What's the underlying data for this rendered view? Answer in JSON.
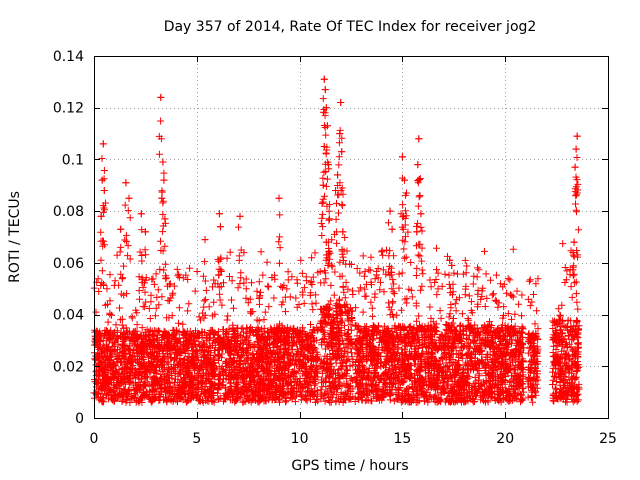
{
  "chart_data": {
    "type": "scatter",
    "title": "Day 357 of 2014, Rate Of TEC Index for receiver jog2",
    "xlabel": "GPS time / hours",
    "ylabel": "ROTI / TECUs",
    "xlim": [
      0,
      25
    ],
    "ylim": [
      0,
      0.14
    ],
    "xticks": [
      0,
      5,
      10,
      15,
      20,
      25
    ],
    "xtick_labels": [
      "0",
      "5",
      "10",
      "15",
      "20",
      "25"
    ],
    "yticks": [
      0,
      0.02,
      0.04,
      0.06,
      0.08,
      0.1,
      0.12,
      0.14
    ],
    "ytick_labels": [
      "0",
      "0.02",
      "0.04",
      "0.06",
      "0.08",
      "0.1",
      "0.12",
      "0.14"
    ],
    "grid": true,
    "marker": "+",
    "color": "#ff0000",
    "series": [
      {
        "name": "ROTI",
        "segments": [
          {
            "x_start": 0.0,
            "x_end": 5.9,
            "base": 0.022,
            "spread": 0.012
          },
          {
            "x_start": 6.0,
            "x_end": 10.9,
            "base": 0.023,
            "spread": 0.012
          },
          {
            "x_start": 11.0,
            "x_end": 12.6,
            "base": 0.028,
            "spread": 0.016
          },
          {
            "x_start": 12.7,
            "x_end": 20.9,
            "base": 0.024,
            "spread": 0.012
          },
          {
            "x_start": 21.1,
            "x_end": 21.6,
            "base": 0.022,
            "spread": 0.011
          },
          {
            "x_start": 22.3,
            "x_end": 23.6,
            "base": 0.025,
            "spread": 0.013
          }
        ],
        "spikes": [
          {
            "x": 0.45,
            "y": 0.106
          },
          {
            "x": 0.4,
            "y": 0.092
          },
          {
            "x": 0.5,
            "y": 0.088
          },
          {
            "x": 0.35,
            "y": 0.078
          },
          {
            "x": 1.3,
            "y": 0.073
          },
          {
            "x": 1.55,
            "y": 0.091
          },
          {
            "x": 1.7,
            "y": 0.085
          },
          {
            "x": 2.3,
            "y": 0.079
          },
          {
            "x": 2.5,
            "y": 0.072
          },
          {
            "x": 3.25,
            "y": 0.124
          },
          {
            "x": 3.35,
            "y": 0.099
          },
          {
            "x": 3.4,
            "y": 0.092
          },
          {
            "x": 3.45,
            "y": 0.077
          },
          {
            "x": 3.3,
            "y": 0.085
          },
          {
            "x": 5.4,
            "y": 0.069
          },
          {
            "x": 6.1,
            "y": 0.079
          },
          {
            "x": 6.15,
            "y": 0.074
          },
          {
            "x": 7.1,
            "y": 0.078
          },
          {
            "x": 9.0,
            "y": 0.085
          },
          {
            "x": 11.2,
            "y": 0.131
          },
          {
            "x": 11.25,
            "y": 0.127
          },
          {
            "x": 11.3,
            "y": 0.12
          },
          {
            "x": 11.35,
            "y": 0.113
          },
          {
            "x": 11.2,
            "y": 0.105
          },
          {
            "x": 11.4,
            "y": 0.098
          },
          {
            "x": 11.15,
            "y": 0.09
          },
          {
            "x": 11.1,
            "y": 0.083
          },
          {
            "x": 11.45,
            "y": 0.077
          },
          {
            "x": 11.3,
            "y": 0.068
          },
          {
            "x": 12.0,
            "y": 0.122
          },
          {
            "x": 11.95,
            "y": 0.11
          },
          {
            "x": 11.85,
            "y": 0.094
          },
          {
            "x": 12.05,
            "y": 0.103
          },
          {
            "x": 11.75,
            "y": 0.088
          },
          {
            "x": 12.1,
            "y": 0.072
          },
          {
            "x": 14.4,
            "y": 0.08
          },
          {
            "x": 14.5,
            "y": 0.073
          },
          {
            "x": 15.0,
            "y": 0.101
          },
          {
            "x": 15.1,
            "y": 0.092
          },
          {
            "x": 15.2,
            "y": 0.087
          },
          {
            "x": 15.05,
            "y": 0.078
          },
          {
            "x": 15.8,
            "y": 0.108
          },
          {
            "x": 15.75,
            "y": 0.098
          },
          {
            "x": 15.85,
            "y": 0.086
          },
          {
            "x": 15.9,
            "y": 0.079
          },
          {
            "x": 15.7,
            "y": 0.072
          },
          {
            "x": 17.3,
            "y": 0.061
          },
          {
            "x": 17.4,
            "y": 0.059
          },
          {
            "x": 23.5,
            "y": 0.109
          },
          {
            "x": 23.45,
            "y": 0.104
          },
          {
            "x": 23.4,
            "y": 0.097
          },
          {
            "x": 23.5,
            "y": 0.087
          },
          {
            "x": 23.35,
            "y": 0.068
          },
          {
            "x": 23.3,
            "y": 0.064
          }
        ]
      }
    ]
  }
}
